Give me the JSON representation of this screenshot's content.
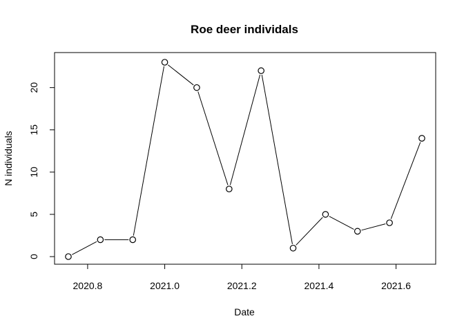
{
  "chart_data": {
    "type": "line",
    "title": "Roe deer individals",
    "xlabel": "Date",
    "ylabel": "N individuals",
    "xlim": [
      2020.75,
      2021.667
    ],
    "ylim": [
      0,
      23
    ],
    "x_ticks": [
      2020.8,
      2021.0,
      2021.2,
      2021.4,
      2021.6
    ],
    "x_tick_labels": [
      "2020.8",
      "2021.0",
      "2021.2",
      "2021.4",
      "2021.6"
    ],
    "y_ticks": [
      0,
      5,
      10,
      15,
      20
    ],
    "y_tick_labels": [
      "0",
      "5",
      "10",
      "15",
      "20"
    ],
    "grid": false,
    "marker": "open-circle",
    "series": [
      {
        "x": [
          2020.75,
          2020.833,
          2020.917,
          2021.0,
          2021.083,
          2021.167,
          2021.25,
          2021.333,
          2021.417,
          2021.5,
          2021.583,
          2021.667
        ],
        "y": [
          0,
          2,
          2,
          23,
          20,
          8,
          22,
          1,
          5,
          3,
          4,
          14
        ]
      }
    ]
  }
}
